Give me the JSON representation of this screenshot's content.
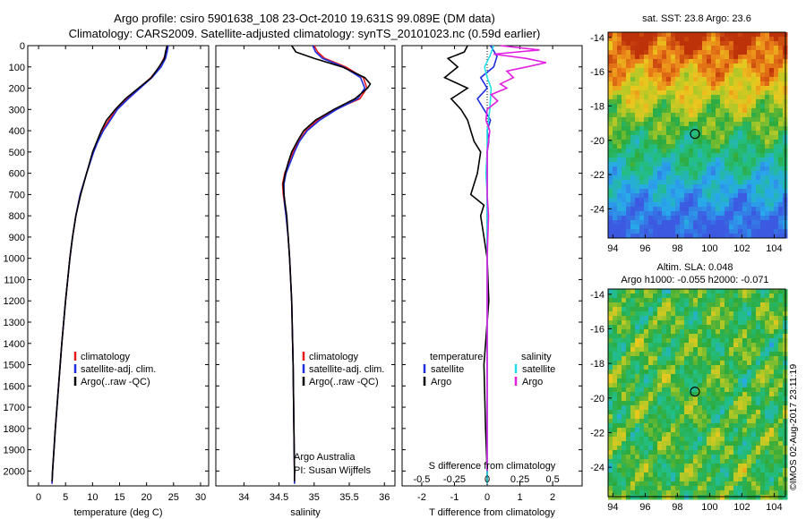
{
  "header": {
    "line1": "Argo profile: csiro 5901638_108 23-Oct-2010 19.631S 99.089E (DM data)",
    "line2": "Climatology: CARS2009. Satellite-adjusted climatology: synTS_20101023.nc (0.59d earlier)"
  },
  "credit": "©IMOS 02-Aug-2017 23:11:19",
  "colors": {
    "climatology": "#e8191b",
    "satellite": "#1f2fe0",
    "argo": "#000000",
    "sal_satellite": "#21e0e8",
    "sal_argo": "#e21fe0"
  },
  "chart_data": [
    {
      "id": "temperature",
      "type": "line",
      "xlabel": "temperature (deg C)",
      "ylabel": "",
      "xlim": [
        -2,
        31.5
      ],
      "ylim": [
        2070,
        0
      ],
      "xticks": [
        "0",
        "5",
        "10",
        "15",
        "20",
        "25",
        "30"
      ],
      "xtick_values": [
        0,
        5,
        10,
        15,
        20,
        25,
        30
      ],
      "yticks": [
        "0",
        "100",
        "200",
        "300",
        "400",
        "500",
        "600",
        "700",
        "800",
        "900",
        "1000",
        "1100",
        "1200",
        "1300",
        "1400",
        "1500",
        "1600",
        "1700",
        "1800",
        "1900",
        "2000"
      ],
      "ytick_values": [
        0,
        100,
        200,
        300,
        400,
        500,
        600,
        700,
        800,
        900,
        1000,
        1100,
        1200,
        1300,
        1400,
        1500,
        1600,
        1700,
        1800,
        1900,
        2000
      ],
      "legend": [
        "climatology",
        "satellite-adj. clim.",
        "Argo(..raw -QC)"
      ],
      "series": [
        {
          "name": "climatology",
          "depth": [
            0,
            30,
            60,
            100,
            150,
            200,
            250,
            300,
            350,
            400,
            450,
            500,
            600,
            700,
            800,
            900,
            1000,
            1200,
            1400,
            1600,
            1800,
            2000,
            2060
          ],
          "values": [
            23.9,
            23.6,
            23.2,
            22.4,
            20.8,
            18.6,
            16.3,
            14.4,
            13.0,
            11.8,
            10.9,
            10.1,
            8.9,
            7.7,
            6.9,
            6.3,
            5.8,
            5.0,
            4.3,
            3.7,
            3.1,
            2.6,
            2.5
          ]
        },
        {
          "name": "satellite-adj. clim.",
          "depth": [
            0,
            30,
            60,
            100,
            150,
            200,
            250,
            300,
            350,
            400,
            450,
            500,
            600,
            700,
            800,
            900,
            1000,
            1200,
            1400,
            1600,
            1800,
            2000,
            2060
          ],
          "values": [
            24.0,
            23.8,
            23.5,
            22.7,
            21.0,
            18.8,
            16.6,
            14.6,
            13.3,
            12.0,
            11.0,
            10.2,
            8.9,
            7.7,
            6.9,
            6.3,
            5.8,
            5.0,
            4.3,
            3.7,
            3.1,
            2.6,
            2.5
          ]
        },
        {
          "name": "Argo(..raw -QC)",
          "depth": [
            0,
            30,
            60,
            100,
            150,
            200,
            250,
            300,
            350,
            400,
            450,
            500,
            600,
            700,
            800,
            900,
            1000,
            1200,
            1400,
            1600,
            1800,
            2000,
            2050
          ],
          "values": [
            23.8,
            23.5,
            23.3,
            22.3,
            20.9,
            18.5,
            16.1,
            14.2,
            12.6,
            11.6,
            10.8,
            10.0,
            8.9,
            7.8,
            6.9,
            6.3,
            5.8,
            5.0,
            4.3,
            3.7,
            3.1,
            2.6,
            2.5
          ]
        }
      ]
    },
    {
      "id": "salinity",
      "type": "line",
      "xlabel": "salinity",
      "ylabel": "",
      "xlim": [
        33.6,
        36.15
      ],
      "ylim": [
        2070,
        0
      ],
      "xticks": [
        "34",
        "34.5",
        "35",
        "35.5",
        "36"
      ],
      "xtick_values": [
        34,
        34.5,
        35,
        35.5,
        36
      ],
      "legend": [
        "climatology",
        "satellite-adj. clim.",
        "Argo(..raw -QC)"
      ],
      "annotation": [
        "Argo Australia",
        "PI: Susan Wijffels"
      ],
      "series": [
        {
          "name": "climatology",
          "depth": [
            0,
            30,
            60,
            100,
            150,
            200,
            250,
            300,
            350,
            400,
            450,
            500,
            550,
            600,
            650,
            700,
            750,
            800,
            900,
            1000,
            1200,
            1500,
            2000,
            2060
          ],
          "values": [
            35.0,
            35.05,
            35.15,
            35.45,
            35.7,
            35.75,
            35.65,
            35.3,
            35.05,
            34.88,
            34.78,
            34.7,
            34.64,
            34.58,
            34.55,
            34.56,
            34.58,
            34.6,
            34.63,
            34.65,
            34.68,
            34.7,
            34.72,
            34.72
          ]
        },
        {
          "name": "satellite-adj. clim.",
          "depth": [
            0,
            30,
            60,
            100,
            150,
            200,
            250,
            300,
            350,
            400,
            450,
            500,
            550,
            600,
            650,
            700,
            750,
            800,
            900,
            1000,
            1200,
            1500,
            2000,
            2060
          ],
          "values": [
            34.98,
            35.02,
            35.12,
            35.42,
            35.66,
            35.72,
            35.62,
            35.32,
            35.08,
            34.9,
            34.79,
            34.72,
            34.66,
            34.6,
            34.57,
            34.57,
            34.58,
            34.6,
            34.63,
            34.65,
            34.68,
            34.7,
            34.72,
            34.72
          ]
        },
        {
          "name": "Argo(..raw -QC)",
          "depth": [
            0,
            30,
            60,
            100,
            150,
            180,
            200,
            250,
            300,
            350,
            400,
            450,
            500,
            550,
            600,
            650,
            700,
            750,
            800,
            900,
            1000,
            1200,
            1500,
            2000,
            2050
          ],
          "values": [
            34.68,
            34.74,
            35.0,
            35.4,
            35.72,
            35.8,
            35.76,
            35.58,
            35.28,
            35.02,
            34.85,
            34.76,
            34.68,
            34.63,
            34.59,
            34.56,
            34.57,
            34.59,
            34.61,
            34.63,
            34.65,
            34.68,
            34.7,
            34.72,
            34.72
          ]
        }
      ]
    },
    {
      "id": "differences",
      "type": "line",
      "xlabel": "T difference from climatology",
      "xlabel_top": "S difference from climatology",
      "xlim": [
        -2.6,
        2.9
      ],
      "ylim": [
        2070,
        0
      ],
      "xticks": [
        "-2",
        "-1",
        "0",
        "1",
        "2"
      ],
      "xtick_values": [
        -2,
        -1,
        0,
        1,
        2
      ],
      "sticks": [
        "-0.5",
        "-0.25",
        "0",
        "0.25",
        "0.5"
      ],
      "stick_values": [
        -0.5,
        -0.25,
        0,
        0.25,
        0.5
      ],
      "legend_temperature": [
        "temperature",
        "satellite",
        "Argo"
      ],
      "legend_salinity": [
        "salinity",
        "satellite",
        "Argo"
      ],
      "series": [
        {
          "name": "temperature satellite",
          "unit": "T",
          "depth": [
            0,
            50,
            100,
            150,
            200,
            250,
            300,
            350,
            400,
            450,
            500,
            600,
            700,
            800,
            900,
            1000,
            1200,
            1500,
            2000,
            2060
          ],
          "values": [
            0.1,
            0.3,
            0.2,
            -0.2,
            0.0,
            -0.3,
            -0.1,
            0.1,
            0.0,
            0.05,
            0.0,
            0.0,
            0.0,
            0.0,
            0.0,
            0.0,
            0.0,
            0.0,
            0.0,
            0.0
          ]
        },
        {
          "name": "temperature Argo",
          "unit": "T",
          "depth": [
            0,
            30,
            60,
            100,
            150,
            200,
            250,
            300,
            350,
            400,
            450,
            500,
            600,
            700,
            750,
            800,
            900,
            1000,
            1200,
            1500,
            1800,
            2000,
            2050
          ],
          "values": [
            -0.6,
            -0.7,
            -1.2,
            -0.9,
            -1.3,
            -0.6,
            -1.1,
            -0.8,
            -0.6,
            -0.5,
            -0.4,
            -0.2,
            -0.3,
            -0.5,
            -0.1,
            -0.2,
            -0.1,
            0.0,
            0.05,
            -0.1,
            -0.05,
            0.0,
            0.0
          ]
        },
        {
          "name": "salinity satellite",
          "unit": "S",
          "depth": [
            0,
            50,
            100,
            150,
            200,
            300,
            400,
            500,
            600,
            700,
            800,
            1000,
            1500,
            2000,
            2060
          ],
          "values": [
            0.05,
            0.02,
            -0.02,
            0.0,
            0.03,
            0.02,
            0.0,
            0.0,
            -0.01,
            0.0,
            0.0,
            0.0,
            0.0,
            0.0,
            0.0
          ]
        },
        {
          "name": "salinity Argo",
          "unit": "S",
          "depth": [
            0,
            20,
            40,
            60,
            80,
            100,
            120,
            150,
            180,
            200,
            230,
            260,
            300,
            350,
            400,
            500,
            600,
            700,
            800,
            1000,
            1500,
            2000
          ],
          "values": [
            0.1,
            0.4,
            0.05,
            0.3,
            0.45,
            0.3,
            0.15,
            0.2,
            0.1,
            0.15,
            0.03,
            0.08,
            0.0,
            -0.01,
            0.02,
            0.0,
            0.0,
            0.0,
            0.01,
            0.0,
            0.0,
            0.0
          ]
        }
      ]
    },
    {
      "id": "sst-map",
      "type": "heatmap",
      "title": "sat. SST: 23.8  Argo: 23.6",
      "xlim": [
        93.7,
        104.7
      ],
      "ylim": [
        -25.7,
        -13.7
      ],
      "xticks": [
        "94",
        "96",
        "98",
        "100",
        "102",
        "104"
      ],
      "xtick_values": [
        94,
        96,
        98,
        100,
        102,
        104
      ],
      "yticks": [
        "-14",
        "-16",
        "-18",
        "-20",
        "-22",
        "-24"
      ],
      "ytick_values": [
        -14,
        -16,
        -18,
        -20,
        -22,
        -24
      ],
      "marker": {
        "lon": 99.089,
        "lat": -19.631
      }
    },
    {
      "id": "sla-map",
      "type": "heatmap",
      "title": "Altim. SLA: 0.048",
      "subtitle": "Argo h1000: -0.055 h2000: -0.071",
      "xlim": [
        93.7,
        104.7
      ],
      "ylim": [
        -25.7,
        -13.7
      ],
      "xticks": [
        "94",
        "96",
        "98",
        "100",
        "102",
        "104"
      ],
      "xtick_values": [
        94,
        96,
        98,
        100,
        102,
        104
      ],
      "yticks": [
        "-14",
        "-16",
        "-18",
        "-20",
        "-22",
        "-24"
      ],
      "ytick_values": [
        -14,
        -16,
        -18,
        -20,
        -22,
        -24
      ],
      "marker": {
        "lon": 99.089,
        "lat": -19.631
      }
    }
  ]
}
